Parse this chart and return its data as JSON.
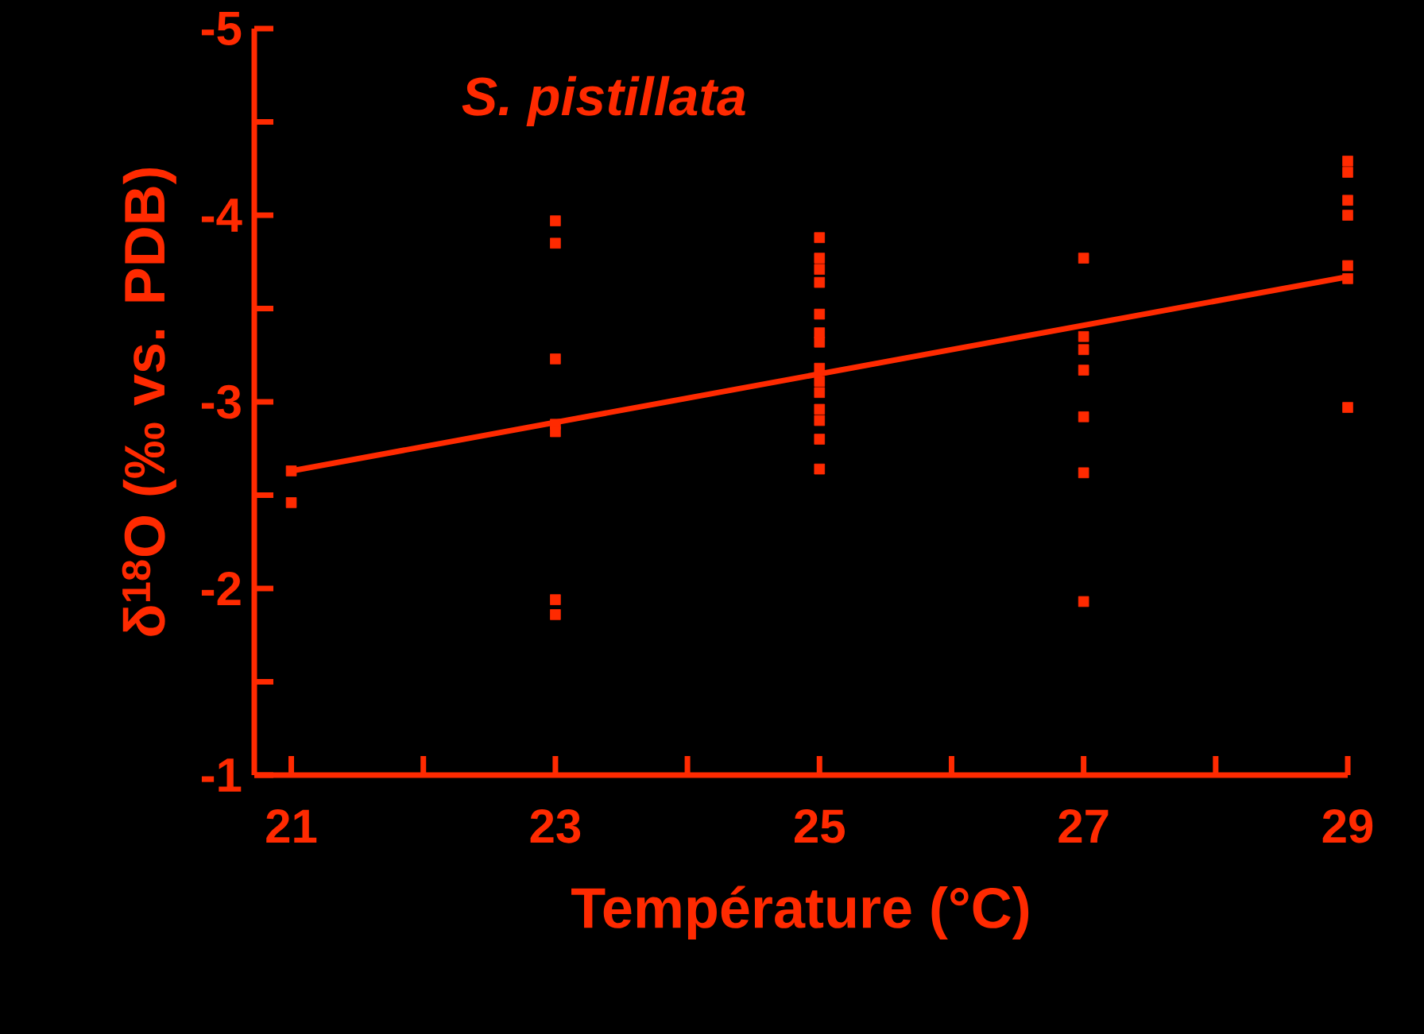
{
  "chart_data": {
    "type": "scatter",
    "title": "S. pistillata",
    "xlabel": "Température (°C)",
    "ylabel": "δ$^{18}$O (‰ vs. PDB)",
    "xlim": [
      20.72,
      29
    ],
    "ylim": [
      -1,
      -5
    ],
    "xticks": [
      21,
      {
        "value": 22,
        "label": null
      },
      23,
      {
        "value": 24,
        "label": null
      },
      25,
      {
        "value": 26,
        "label": null
      },
      27,
      {
        "value": 28,
        "label": null
      },
      29
    ],
    "yticks": [
      -1,
      {
        "value": -1.5,
        "label": null
      },
      -2,
      {
        "value": -2.5,
        "label": null
      },
      -3,
      {
        "value": -3.5,
        "label": null
      },
      -4,
      {
        "value": -4.5,
        "label": null
      },
      -5
    ],
    "marker": "square",
    "series": [
      {
        "color": "#ff2a00",
        "x": [
          21,
          21,
          23,
          23,
          23,
          23,
          23,
          23,
          23,
          25,
          25,
          25,
          25,
          25,
          25,
          25,
          25,
          25,
          25,
          25,
          25,
          25,
          25,
          27,
          27,
          27,
          27,
          27,
          27,
          27,
          29,
          29,
          29,
          29,
          29,
          29,
          29
        ],
        "values": [
          -2.63,
          -2.46,
          -3.97,
          -3.85,
          -3.23,
          -2.88,
          -2.84,
          -1.94,
          -1.86,
          -3.88,
          -3.77,
          -3.71,
          -3.64,
          -3.47,
          -3.37,
          -3.32,
          -3.18,
          -3.11,
          -3.05,
          -2.96,
          -2.9,
          -2.8,
          -2.64,
          -3.77,
          -3.35,
          -3.28,
          -3.17,
          -2.92,
          -2.62,
          -1.93,
          -4.29,
          -4.23,
          -4.08,
          -4.0,
          -3.73,
          -3.66,
          -2.97
        ]
      },
      {
        "type": "line",
        "color": "#ff2a00",
        "marker": "none",
        "line_style": "solid",
        "x": [
          21,
          29
        ],
        "values": [
          -2.63,
          -3.67
        ]
      }
    ]
  }
}
